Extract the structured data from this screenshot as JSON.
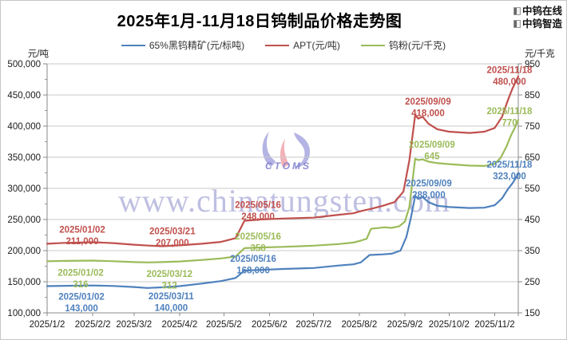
{
  "header": {
    "title": "2025年1月-11月18日钨制品价格走势图",
    "brand_lines": [
      {
        "label": "中钨在线"
      },
      {
        "label": "中钨智造"
      }
    ]
  },
  "watermark": {
    "text": "www.chinatungsten.com",
    "logo_text": "CTOMS"
  },
  "chart_data": {
    "type": "line",
    "title": "2025年1月-11月18日钨制品价格走势图",
    "grid": "horizontal-only",
    "legend_position": "top-center",
    "left_axis": {
      "label": "元/吨",
      "min": 100000,
      "max": 500000,
      "step": 50000,
      "tick_labels": [
        "500,000",
        "450,000",
        "400,000",
        "350,000",
        "300,000",
        "250,000",
        "200,000",
        "150,000",
        "100,000"
      ]
    },
    "right_axis": {
      "label": "元/千克",
      "min": 150,
      "max": 950,
      "step": 100,
      "tick_labels": [
        "950",
        "850",
        "750",
        "650",
        "550",
        "450",
        "350",
        "250",
        "150"
      ]
    },
    "x_axis": {
      "span_days": 320,
      "tick_days": [
        0,
        31,
        59,
        90,
        120,
        151,
        181,
        212,
        243,
        273,
        304
      ],
      "tick_labels": [
        "2025/1/2",
        "2025/2/2",
        "2025/3/2",
        "2025/4/2",
        "2025/5/2",
        "2025/6/2",
        "2025/7/2",
        "2025/8/2",
        "2025/9/2",
        "2025/10/2",
        "2025/11/2"
      ]
    },
    "series": [
      {
        "name": "65%黑钨精矿(元/标吨)",
        "color": "#4F81BD",
        "axis": "left",
        "points": [
          [
            0,
            143000
          ],
          [
            12,
            143500
          ],
          [
            31,
            144000
          ],
          [
            45,
            143200
          ],
          [
            59,
            141500
          ],
          [
            68,
            140000
          ],
          [
            78,
            141000
          ],
          [
            90,
            143000
          ],
          [
            105,
            147000
          ],
          [
            118,
            151000
          ],
          [
            128,
            156000
          ],
          [
            134,
            168000
          ],
          [
            145,
            169000
          ],
          [
            160,
            170500
          ],
          [
            181,
            172000
          ],
          [
            198,
            176000
          ],
          [
            208,
            178000
          ],
          [
            213,
            181000
          ],
          [
            219,
            193000
          ],
          [
            228,
            194000
          ],
          [
            234,
            195000
          ],
          [
            240,
            200000
          ],
          [
            244,
            222000
          ],
          [
            247,
            252000
          ],
          [
            250,
            288000
          ],
          [
            252,
            283000
          ],
          [
            255,
            286000
          ],
          [
            259,
            278000
          ],
          [
            265,
            272000
          ],
          [
            273,
            270000
          ],
          [
            287,
            268500
          ],
          [
            297,
            269000
          ],
          [
            304,
            273000
          ],
          [
            309,
            284000
          ],
          [
            313,
            299000
          ],
          [
            316,
            308000
          ],
          [
            320,
            323000
          ]
        ]
      },
      {
        "name": "APT(元/吨)",
        "color": "#C0504D",
        "axis": "left",
        "points": [
          [
            0,
            211000
          ],
          [
            12,
            212500
          ],
          [
            31,
            213500
          ],
          [
            45,
            212000
          ],
          [
            59,
            209500
          ],
          [
            70,
            208000
          ],
          [
            78,
            207000
          ],
          [
            90,
            208500
          ],
          [
            105,
            211000
          ],
          [
            118,
            214000
          ],
          [
            128,
            220000
          ],
          [
            134,
            248000
          ],
          [
            145,
            250000
          ],
          [
            160,
            251500
          ],
          [
            181,
            253000
          ],
          [
            198,
            257500
          ],
          [
            208,
            260000
          ],
          [
            214,
            264000
          ],
          [
            220,
            267000
          ],
          [
            228,
            272000
          ],
          [
            236,
            278000
          ],
          [
            242,
            295000
          ],
          [
            246,
            345000
          ],
          [
            250,
            418000
          ],
          [
            252,
            412000
          ],
          [
            255,
            415000
          ],
          [
            259,
            404000
          ],
          [
            265,
            395000
          ],
          [
            273,
            391000
          ],
          [
            287,
            389000
          ],
          [
            297,
            391000
          ],
          [
            304,
            397000
          ],
          [
            309,
            415000
          ],
          [
            313,
            442000
          ],
          [
            316,
            460000
          ],
          [
            320,
            480000
          ]
        ]
      },
      {
        "name": "钨粉(元/千克)",
        "color": "#9BBB59",
        "axis": "right",
        "points": [
          [
            0,
            316
          ],
          [
            12,
            317
          ],
          [
            31,
            318
          ],
          [
            45,
            316
          ],
          [
            59,
            313
          ],
          [
            69,
            312
          ],
          [
            78,
            313
          ],
          [
            90,
            315
          ],
          [
            105,
            320
          ],
          [
            118,
            325
          ],
          [
            128,
            331
          ],
          [
            134,
            358
          ],
          [
            145,
            360
          ],
          [
            160,
            362
          ],
          [
            181,
            366
          ],
          [
            198,
            371
          ],
          [
            208,
            376
          ],
          [
            213,
            382
          ],
          [
            217,
            388
          ],
          [
            220,
            420
          ],
          [
            229,
            425
          ],
          [
            234,
            423
          ],
          [
            239,
            428
          ],
          [
            243,
            443
          ],
          [
            246,
            490
          ],
          [
            248,
            570
          ],
          [
            250,
            645
          ],
          [
            252,
            641
          ],
          [
            255,
            643
          ],
          [
            259,
            636
          ],
          [
            265,
            631
          ],
          [
            273,
            628
          ],
          [
            287,
            623
          ],
          [
            297,
            622
          ],
          [
            304,
            629
          ],
          [
            308,
            648
          ],
          [
            312,
            685
          ],
          [
            315,
            720
          ],
          [
            318,
            748
          ],
          [
            320,
            770
          ]
        ]
      }
    ],
    "annotations": [
      {
        "series": 0,
        "date": "2025/01/02",
        "value": "143,000",
        "day": 0,
        "val": 143000
      },
      {
        "series": 0,
        "date": "2025/03/11",
        "value": "140,000",
        "day": 68,
        "val": 140000
      },
      {
        "series": 0,
        "date": "2025/05/16",
        "value": "168,000",
        "day": 134,
        "val": 168000
      },
      {
        "series": 0,
        "date": "2025/09/09",
        "value": "288,000",
        "day": 250,
        "val": 288000
      },
      {
        "series": 0,
        "date": "2025/11/18",
        "value": "323,000",
        "day": 320,
        "val": 323000
      },
      {
        "series": 1,
        "date": "2025/01/02",
        "value": "211,000",
        "day": 0,
        "val": 211000
      },
      {
        "series": 1,
        "date": "2025/03/21",
        "value": "207,000",
        "day": 78,
        "val": 207000
      },
      {
        "series": 1,
        "date": "2025/05/16",
        "value": "248,000",
        "day": 134,
        "val": 248000
      },
      {
        "series": 1,
        "date": "2025/09/09",
        "value": "418,000",
        "day": 250,
        "val": 418000
      },
      {
        "series": 1,
        "date": "2025/11/18",
        "value": "480,000",
        "day": 320,
        "val": 480000
      },
      {
        "series": 2,
        "date": "2025/01/02",
        "value": "316",
        "day": 0,
        "val": 316
      },
      {
        "series": 2,
        "date": "2025/03/12",
        "value": "312",
        "day": 69,
        "val": 312
      },
      {
        "series": 2,
        "date": "2025/05/16",
        "value": "358",
        "day": 134,
        "val": 358
      },
      {
        "series": 2,
        "date": "2025/09/09",
        "value": "645",
        "day": 250,
        "val": 645
      },
      {
        "series": 2,
        "date": "2025/11/18",
        "value": "770",
        "day": 320,
        "val": 770
      }
    ]
  }
}
